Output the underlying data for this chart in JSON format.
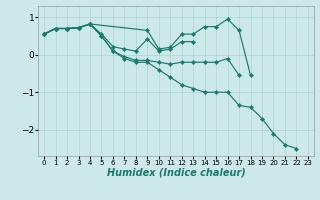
{
  "xlabel": "Humidex (Indice chaleur)",
  "background_color": "#cce8e8",
  "line_color": "#1a7a6e",
  "grid_color": "#aad4d4",
  "x_ticks": [
    0,
    1,
    2,
    3,
    4,
    5,
    6,
    7,
    8,
    9,
    10,
    11,
    12,
    13,
    14,
    15,
    16,
    17,
    18,
    19,
    20,
    21,
    22,
    23
  ],
  "ylim": [
    -2.7,
    1.3
  ],
  "xlim": [
    -0.5,
    23.5
  ],
  "line1_x": [
    0,
    1,
    2,
    3,
    4,
    9,
    10,
    11,
    12,
    13,
    14,
    15,
    16,
    17,
    18
  ],
  "line1_y": [
    0.55,
    0.7,
    0.7,
    0.72,
    0.82,
    0.65,
    0.15,
    0.2,
    0.55,
    0.55,
    0.75,
    0.75,
    0.95,
    0.65,
    -0.55
  ],
  "line2_x": [
    0,
    1,
    2,
    3,
    4,
    5,
    6,
    7,
    8,
    9,
    10,
    11,
    12,
    13
  ],
  "line2_y": [
    0.55,
    0.7,
    0.7,
    0.72,
    0.82,
    0.55,
    0.22,
    0.15,
    0.1,
    0.42,
    0.1,
    0.15,
    0.35,
    0.35
  ],
  "line3_x": [
    0,
    1,
    2,
    3,
    4,
    5,
    6,
    7,
    8,
    9,
    10,
    11,
    12,
    13,
    14,
    15,
    16,
    17
  ],
  "line3_y": [
    0.55,
    0.7,
    0.7,
    0.72,
    0.82,
    0.5,
    0.1,
    -0.05,
    -0.15,
    -0.15,
    -0.2,
    -0.25,
    -0.2,
    -0.2,
    -0.2,
    -0.2,
    -0.1,
    -0.55
  ],
  "line4_x": [
    0,
    1,
    2,
    3,
    4,
    5,
    6,
    7,
    8,
    9,
    10,
    11,
    12,
    13,
    14,
    15,
    16,
    17,
    18,
    19,
    20,
    21,
    22
  ],
  "line4_y": [
    0.55,
    0.7,
    0.7,
    0.72,
    0.82,
    0.5,
    0.1,
    -0.1,
    -0.2,
    -0.2,
    -0.4,
    -0.6,
    -0.8,
    -0.9,
    -1.0,
    -1.0,
    -1.0,
    -1.35,
    -1.4,
    -1.7,
    -2.1,
    -2.4,
    -2.5
  ]
}
